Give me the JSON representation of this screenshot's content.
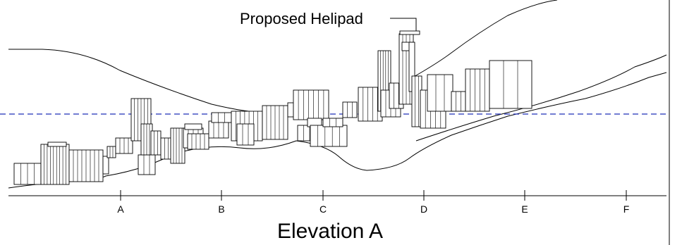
{
  "title": "Elevation A",
  "callout": "Proposed Helipad",
  "gridlines": [
    "A",
    "B",
    "C",
    "D",
    "E",
    "F"
  ],
  "colors": {
    "line": "#000000",
    "reference_line": "#1f2fb8",
    "background": "#ffffff"
  }
}
